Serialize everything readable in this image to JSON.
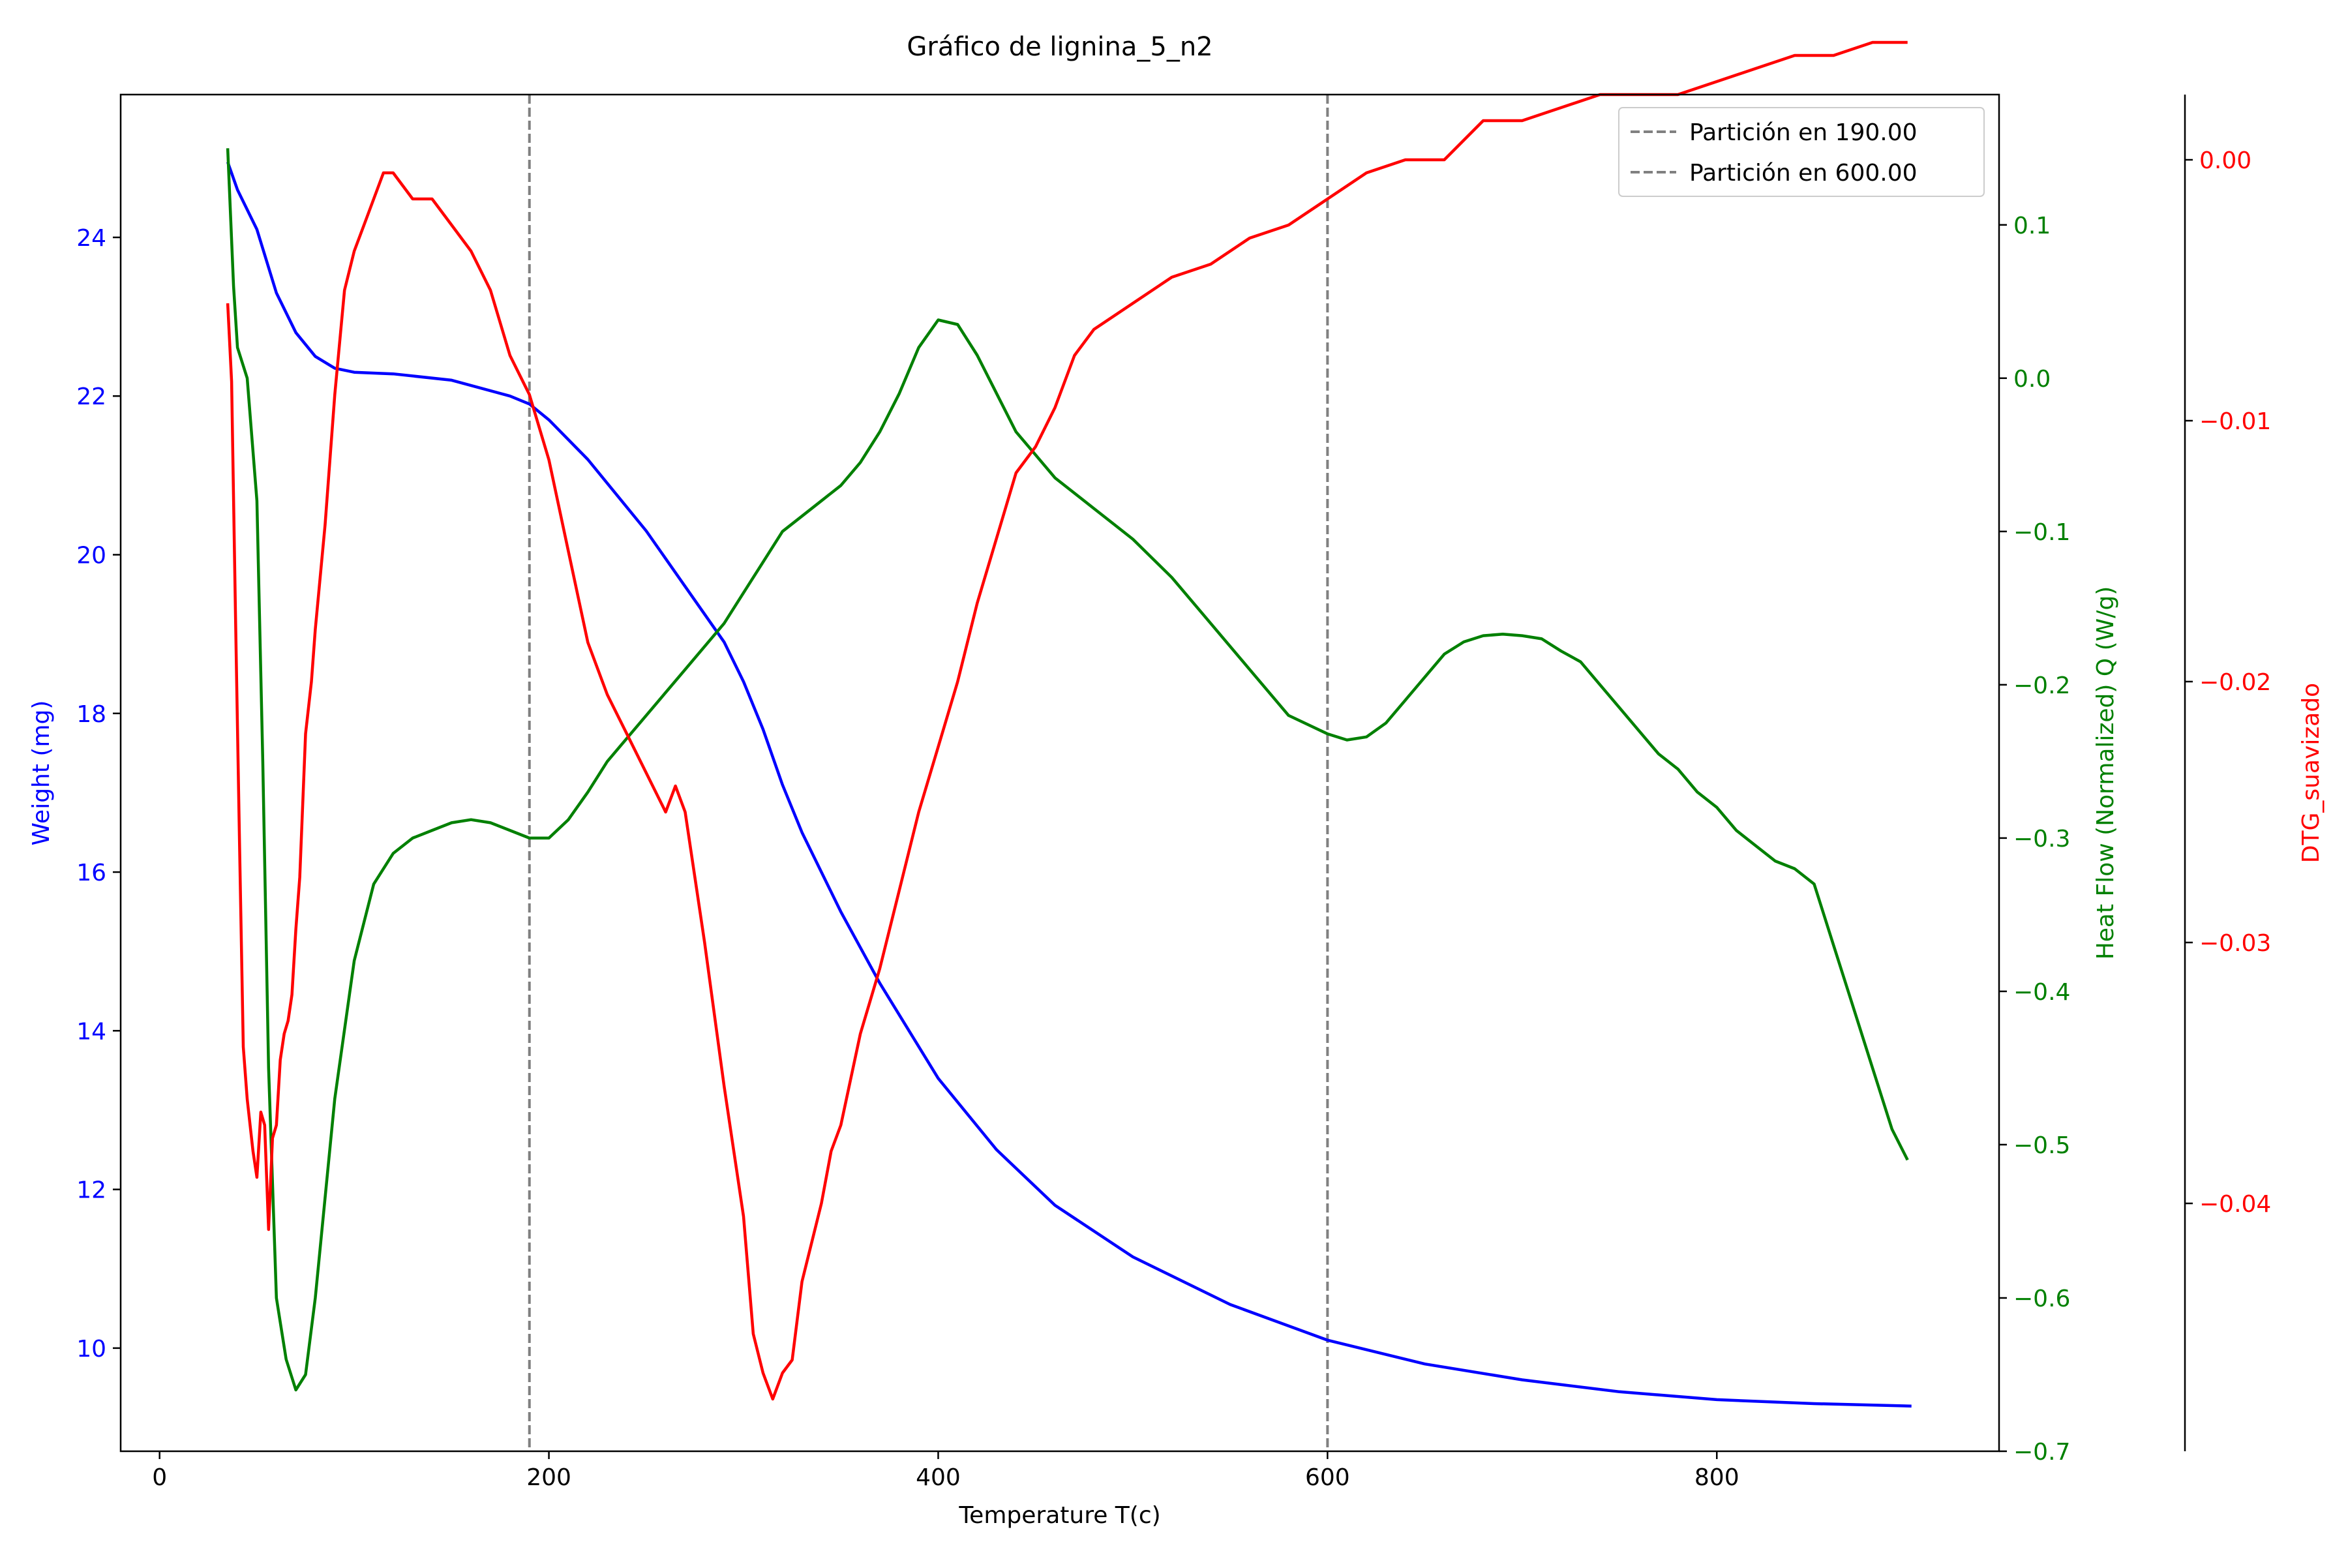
{
  "chart_data": {
    "type": "line",
    "title": "Gráfico de lignina_5_n2",
    "xlabel": "Temperature T(c)",
    "xlim": [
      -20,
      945
    ],
    "xticks": [
      0,
      200,
      400,
      600,
      800
    ],
    "grid": false,
    "legend": {
      "placement": "top-right",
      "entries": [
        "Partición en 190.00",
        "Partición en 600.00"
      ]
    },
    "partitions": [
      190,
      600
    ],
    "axes": {
      "left": {
        "label": "Weight (mg)",
        "color": "#0000ff",
        "ylim": [
          8.7,
          25.8
        ],
        "ticks": [
          10,
          12,
          14,
          16,
          18,
          20,
          22,
          24
        ]
      },
      "right1": {
        "label": "Heat Flow (Normalized) Q (W/g)",
        "color": "#008000",
        "ylim": [
          -0.7,
          0.185
        ],
        "ticks": [
          -0.7,
          -0.6,
          -0.5,
          -0.4,
          -0.3,
          -0.2,
          -0.1,
          0.0,
          0.1
        ],
        "tick_labels": [
          "−0.7",
          "−0.6",
          "−0.5",
          "−0.4",
          "−0.3",
          "−0.2",
          "−0.1",
          "0.0",
          "0.1"
        ]
      },
      "right2": {
        "label": "DTG_suavizado",
        "color": "#ff0000",
        "ylim": [
          -0.0495,
          0.0025
        ],
        "ticks": [
          -0.04,
          -0.03,
          -0.02,
          -0.01,
          0.0
        ],
        "tick_labels": [
          "−0.04",
          "−0.03",
          "−0.02",
          "−0.01",
          "0.00"
        ]
      }
    },
    "series": [
      {
        "name": "Weight",
        "axis": "left",
        "color": "#0000ff",
        "x": [
          35,
          40,
          50,
          60,
          70,
          80,
          90,
          100,
          120,
          150,
          180,
          190,
          200,
          220,
          250,
          270,
          290,
          300,
          310,
          320,
          330,
          350,
          370,
          400,
          430,
          460,
          500,
          550,
          600,
          650,
          700,
          750,
          800,
          850,
          900
        ],
        "y": [
          24.95,
          24.6,
          24.1,
          23.3,
          22.8,
          22.5,
          22.35,
          22.3,
          22.28,
          22.2,
          22.0,
          21.9,
          21.7,
          21.2,
          20.3,
          19.6,
          18.9,
          18.4,
          17.8,
          17.1,
          16.5,
          15.5,
          14.6,
          13.4,
          12.5,
          11.8,
          11.15,
          10.55,
          10.1,
          9.8,
          9.6,
          9.45,
          9.35,
          9.3,
          9.27
        ]
      },
      {
        "name": "Heat Flow",
        "axis": "right1",
        "color": "#008000",
        "x": [
          35,
          38,
          40,
          45,
          50,
          53,
          56,
          60,
          65,
          70,
          75,
          80,
          90,
          100,
          110,
          120,
          130,
          140,
          150,
          160,
          170,
          180,
          190,
          200,
          210,
          220,
          230,
          250,
          270,
          290,
          300,
          310,
          320,
          330,
          340,
          350,
          360,
          370,
          380,
          390,
          400,
          410,
          420,
          430,
          440,
          450,
          460,
          470,
          480,
          490,
          500,
          520,
          540,
          560,
          580,
          600,
          610,
          620,
          630,
          640,
          650,
          660,
          670,
          680,
          690,
          700,
          710,
          720,
          730,
          740,
          750,
          760,
          770,
          780,
          790,
          800,
          810,
          820,
          830,
          840,
          850,
          860,
          870,
          880,
          890,
          898
        ],
        "y": [
          0.15,
          0.06,
          0.02,
          0.0,
          -0.08,
          -0.25,
          -0.45,
          -0.6,
          -0.64,
          -0.66,
          -0.65,
          -0.6,
          -0.47,
          -0.38,
          -0.33,
          -0.31,
          -0.3,
          -0.295,
          -0.29,
          -0.288,
          -0.29,
          -0.295,
          -0.3,
          -0.3,
          -0.288,
          -0.27,
          -0.25,
          -0.22,
          -0.19,
          -0.16,
          -0.14,
          -0.12,
          -0.1,
          -0.09,
          -0.08,
          -0.07,
          -0.055,
          -0.035,
          -0.01,
          0.02,
          0.038,
          0.035,
          0.015,
          -0.01,
          -0.035,
          -0.05,
          -0.065,
          -0.075,
          -0.085,
          -0.095,
          -0.105,
          -0.13,
          -0.16,
          -0.19,
          -0.22,
          -0.232,
          -0.236,
          -0.234,
          -0.225,
          -0.21,
          -0.195,
          -0.18,
          -0.172,
          -0.168,
          -0.167,
          -0.168,
          -0.17,
          -0.178,
          -0.185,
          -0.2,
          -0.215,
          -0.23,
          -0.245,
          -0.255,
          -0.27,
          -0.28,
          -0.295,
          -0.305,
          -0.315,
          -0.32,
          -0.33,
          -0.37,
          -0.41,
          -0.45,
          -0.49,
          -0.51
        ]
      },
      {
        "name": "DTG_suavizado",
        "axis": "right2",
        "color": "#ff0000",
        "x": [
          35,
          37,
          39,
          41,
          43,
          45,
          48,
          50,
          52,
          54,
          56,
          58,
          60,
          62,
          64,
          66,
          68,
          70,
          72,
          75,
          78,
          80,
          85,
          90,
          95,
          100,
          105,
          110,
          115,
          120,
          130,
          140,
          150,
          160,
          170,
          180,
          190,
          200,
          210,
          220,
          230,
          240,
          250,
          260,
          265,
          270,
          275,
          280,
          290,
          300,
          305,
          310,
          315,
          320,
          325,
          330,
          335,
          340,
          345,
          350,
          360,
          370,
          380,
          390,
          400,
          410,
          420,
          430,
          440,
          450,
          460,
          470,
          480,
          500,
          520,
          540,
          560,
          580,
          600,
          620,
          640,
          660,
          680,
          700,
          720,
          740,
          760,
          780,
          800,
          820,
          840,
          860,
          880,
          898
        ],
        "y": [
          -0.0055,
          -0.0085,
          -0.0175,
          -0.026,
          -0.034,
          -0.036,
          -0.038,
          -0.039,
          -0.0365,
          -0.037,
          -0.041,
          -0.0375,
          -0.037,
          -0.0345,
          -0.0335,
          -0.033,
          -0.032,
          -0.0295,
          -0.0275,
          -0.022,
          -0.02,
          -0.018,
          -0.014,
          -0.009,
          -0.005,
          -0.0035,
          -0.0025,
          -0.0015,
          -0.0005,
          -0.0005,
          -0.0015,
          -0.0015,
          -0.0025,
          -0.0035,
          -0.005,
          -0.0075,
          -0.009,
          -0.0115,
          -0.015,
          -0.0185,
          -0.0205,
          -0.022,
          -0.0235,
          -0.025,
          -0.024,
          -0.025,
          -0.0275,
          -0.03,
          -0.0355,
          -0.0405,
          -0.045,
          -0.0465,
          -0.0475,
          -0.0465,
          -0.046,
          -0.043,
          -0.0415,
          -0.04,
          -0.038,
          -0.037,
          -0.0335,
          -0.031,
          -0.028,
          -0.025,
          -0.0225,
          -0.02,
          -0.017,
          -0.0145,
          -0.012,
          -0.011,
          -0.0095,
          -0.0075,
          -0.0065,
          -0.0055,
          -0.0045,
          -0.004,
          -0.003,
          -0.0025,
          -0.0015,
          -0.0005,
          0.0,
          0.0,
          0.0015,
          0.0015,
          0.002,
          0.0025,
          0.0025,
          0.0025,
          0.003,
          0.0035,
          0.004,
          0.004,
          0.0045,
          0.0045
        ]
      }
    ]
  }
}
